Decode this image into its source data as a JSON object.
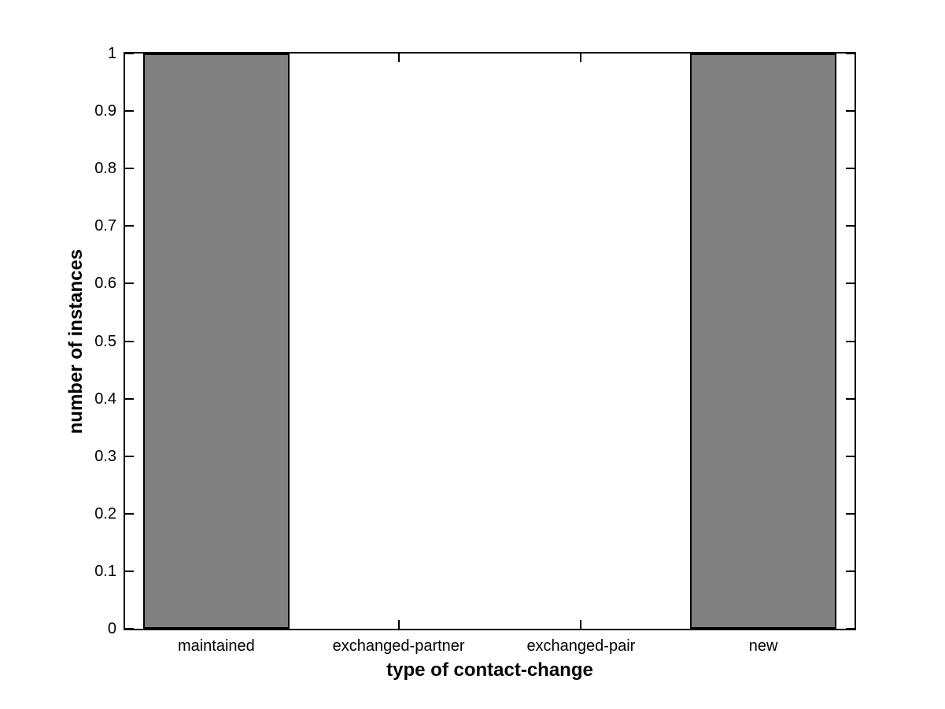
{
  "chart_data": {
    "type": "bar",
    "categories": [
      "maintained",
      "exchanged-partner",
      "exchanged-pair",
      "new"
    ],
    "values": [
      1,
      0,
      0,
      1
    ],
    "xlabel": "type of contact-change",
    "ylabel": "number of instances",
    "ylim": [
      0,
      1
    ],
    "yticks": [
      0,
      0.1,
      0.2,
      0.3,
      0.4,
      0.5,
      0.6,
      0.7,
      0.8,
      0.9,
      1
    ],
    "ytick_labels": [
      "0",
      "0.1",
      "0.2",
      "0.3",
      "0.4",
      "0.5",
      "0.6",
      "0.7",
      "0.8",
      "0.9",
      "1"
    ],
    "bar_width_fraction": 0.8,
    "grid": false,
    "legend": "none",
    "tick_direction": "in",
    "box": true,
    "colors": {
      "bar_fill": "#808080",
      "bar_edge": "#000000",
      "axis": "#000000",
      "background": "#ffffff",
      "text": "#000000"
    }
  }
}
